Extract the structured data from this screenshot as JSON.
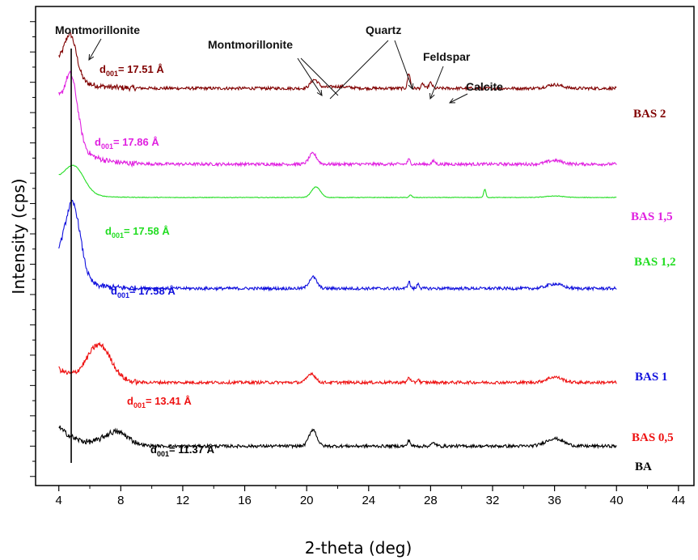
{
  "chart_data": {
    "type": "line",
    "xlabel": "2-theta (deg)",
    "ylabel": "Intensity (cps)",
    "xlim": [
      2.5,
      45
    ],
    "x_ticks": [
      "4",
      "8",
      "12",
      "16",
      "20",
      "24",
      "28",
      "32",
      "36",
      "40",
      "44"
    ],
    "reference_line_x": 4.8,
    "series": [
      {
        "name": "BAS 2",
        "color": "#800000",
        "baseline": 12.1,
        "d_text": "= 17.51 Å",
        "peaks": [
          {
            "x": 4.75,
            "h": 1.35,
            "w": 0.55
          },
          {
            "x": 20.5,
            "h": 0.28,
            "w": 0.35
          },
          {
            "x": 22.0,
            "h": 0.06,
            "w": 1.0
          },
          {
            "x": 26.6,
            "h": 0.5,
            "w": 0.12
          },
          {
            "x": 27.5,
            "h": 0.15,
            "w": 0.12
          },
          {
            "x": 28.0,
            "h": 0.18,
            "w": 0.15
          },
          {
            "x": 36.0,
            "h": 0.12,
            "w": 0.7
          }
        ],
        "start_level": 12.95
      },
      {
        "name": "BAS 1,5",
        "color": "#e020e0",
        "baseline": 9.6,
        "d_text": "= 17.86 Å",
        "peaks": [
          {
            "x": 4.8,
            "h": 2.0,
            "w": 0.6
          },
          {
            "x": 20.4,
            "h": 0.35,
            "w": 0.35
          },
          {
            "x": 26.6,
            "h": 0.15,
            "w": 0.12
          },
          {
            "x": 28.2,
            "h": 0.1,
            "w": 0.15
          },
          {
            "x": 36.0,
            "h": 0.12,
            "w": 0.7
          }
        ],
        "start_level": 11.55
      },
      {
        "name": "BAS 1,2",
        "color": "#22dd22",
        "baseline": 8.5,
        "d_text": "= 17.58 Å",
        "peaks": [
          {
            "x": 5.0,
            "h": 0.85,
            "w": 0.9
          },
          {
            "x": 20.6,
            "h": 0.35,
            "w": 0.4
          },
          {
            "x": 26.7,
            "h": 0.08,
            "w": 0.12
          },
          {
            "x": 31.5,
            "h": 0.28,
            "w": 0.1
          },
          {
            "x": 36.0,
            "h": 0.05,
            "w": 0.8
          }
        ],
        "start_level": 9.0
      },
      {
        "name": "BAS 1",
        "color": "#1010dd",
        "baseline": 5.5,
        "d_text": "= 17.58 Å",
        "peaks": [
          {
            "x": 4.9,
            "h": 2.4,
            "w": 0.7
          },
          {
            "x": 20.4,
            "h": 0.38,
            "w": 0.35
          },
          {
            "x": 26.6,
            "h": 0.22,
            "w": 0.12
          },
          {
            "x": 27.2,
            "h": 0.18,
            "w": 0.1
          },
          {
            "x": 36.0,
            "h": 0.15,
            "w": 0.7
          }
        ],
        "start_level": 6.45
      },
      {
        "name": "BAS 0,5",
        "color": "#ee1111",
        "baseline": 2.4,
        "d_text": "= 13.41 Å",
        "peaks": [
          {
            "x": 6.6,
            "h": 1.2,
            "w": 1.1
          },
          {
            "x": 20.3,
            "h": 0.3,
            "w": 0.35
          },
          {
            "x": 26.6,
            "h": 0.18,
            "w": 0.12
          },
          {
            "x": 27.2,
            "h": 0.12,
            "w": 0.1
          },
          {
            "x": 36.0,
            "h": 0.18,
            "w": 0.7
          }
        ],
        "start_level": 2.85
      },
      {
        "name": "BA",
        "color": "#000000",
        "baseline": 0.3,
        "d_text": "= 11.37 Å",
        "peaks": [
          {
            "x": 7.7,
            "h": 0.45,
            "w": 1.1
          },
          {
            "x": 20.4,
            "h": 0.55,
            "w": 0.35
          },
          {
            "x": 26.6,
            "h": 0.2,
            "w": 0.12
          },
          {
            "x": 28.2,
            "h": 0.1,
            "w": 0.2
          },
          {
            "x": 36.0,
            "h": 0.25,
            "w": 0.8
          }
        ],
        "start_level": 0.95
      }
    ],
    "d_subscript": "001",
    "d_prefix": "d",
    "annotations": {
      "montmorillonite_top": "Montmorillonite",
      "montmorillonite_mid": "Montmorillonite",
      "quartz": "Quartz",
      "feldspar": "Feldspar",
      "calcite": "Calcite"
    },
    "grid": false,
    "legend": "inline labels right of each trace"
  }
}
